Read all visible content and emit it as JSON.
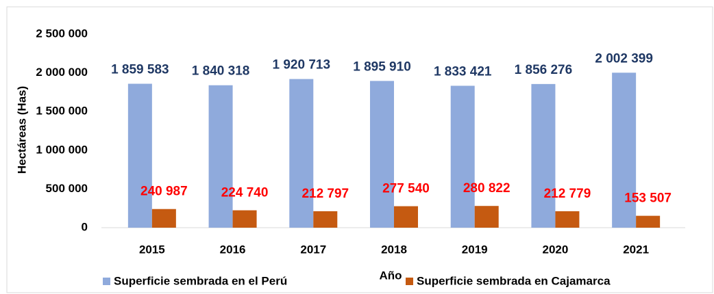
{
  "chart_data": {
    "type": "bar",
    "y_label": "Hectáreas (Has)",
    "x_label": "Año",
    "categories": [
      "2015",
      "2016",
      "2017",
      "2018",
      "2019",
      "2020",
      "2021"
    ],
    "series": [
      {
        "name": "Superficie sembrada en el Perú",
        "color": "#8faadc",
        "label_color": "#1f3864",
        "values": [
          1859583,
          1840318,
          1920713,
          1895910,
          1833421,
          1856276,
          2002399
        ],
        "value_labels": [
          "1 859 583",
          "1 840 318",
          "1 920 713",
          "1 895 910",
          "1 833 421",
          "1 856 276",
          "2 002 399"
        ]
      },
      {
        "name": "Superficie sembrada en Cajamarca",
        "color": "#c55a11",
        "label_color": "#ff0000",
        "values": [
          240987,
          224740,
          212797,
          277540,
          280822,
          212779,
          153507
        ],
        "value_labels": [
          "240 987",
          "224 740",
          "212 797",
          "277 540",
          "280 822",
          "212 779",
          "153 507"
        ]
      }
    ],
    "ylim": [
      0,
      2500000
    ],
    "yticks": [
      0,
      {
        "value": 500000,
        "label": "500 000"
      },
      {
        "value": 1000000,
        "label": "1 000 000"
      },
      {
        "value": 1500000,
        "label": "1 500 000"
      },
      {
        "value": 2000000,
        "label": "2 000 000"
      },
      {
        "value": 2500000,
        "label": "2 500 000"
      }
    ],
    "grid": false,
    "legend": "bottom"
  }
}
